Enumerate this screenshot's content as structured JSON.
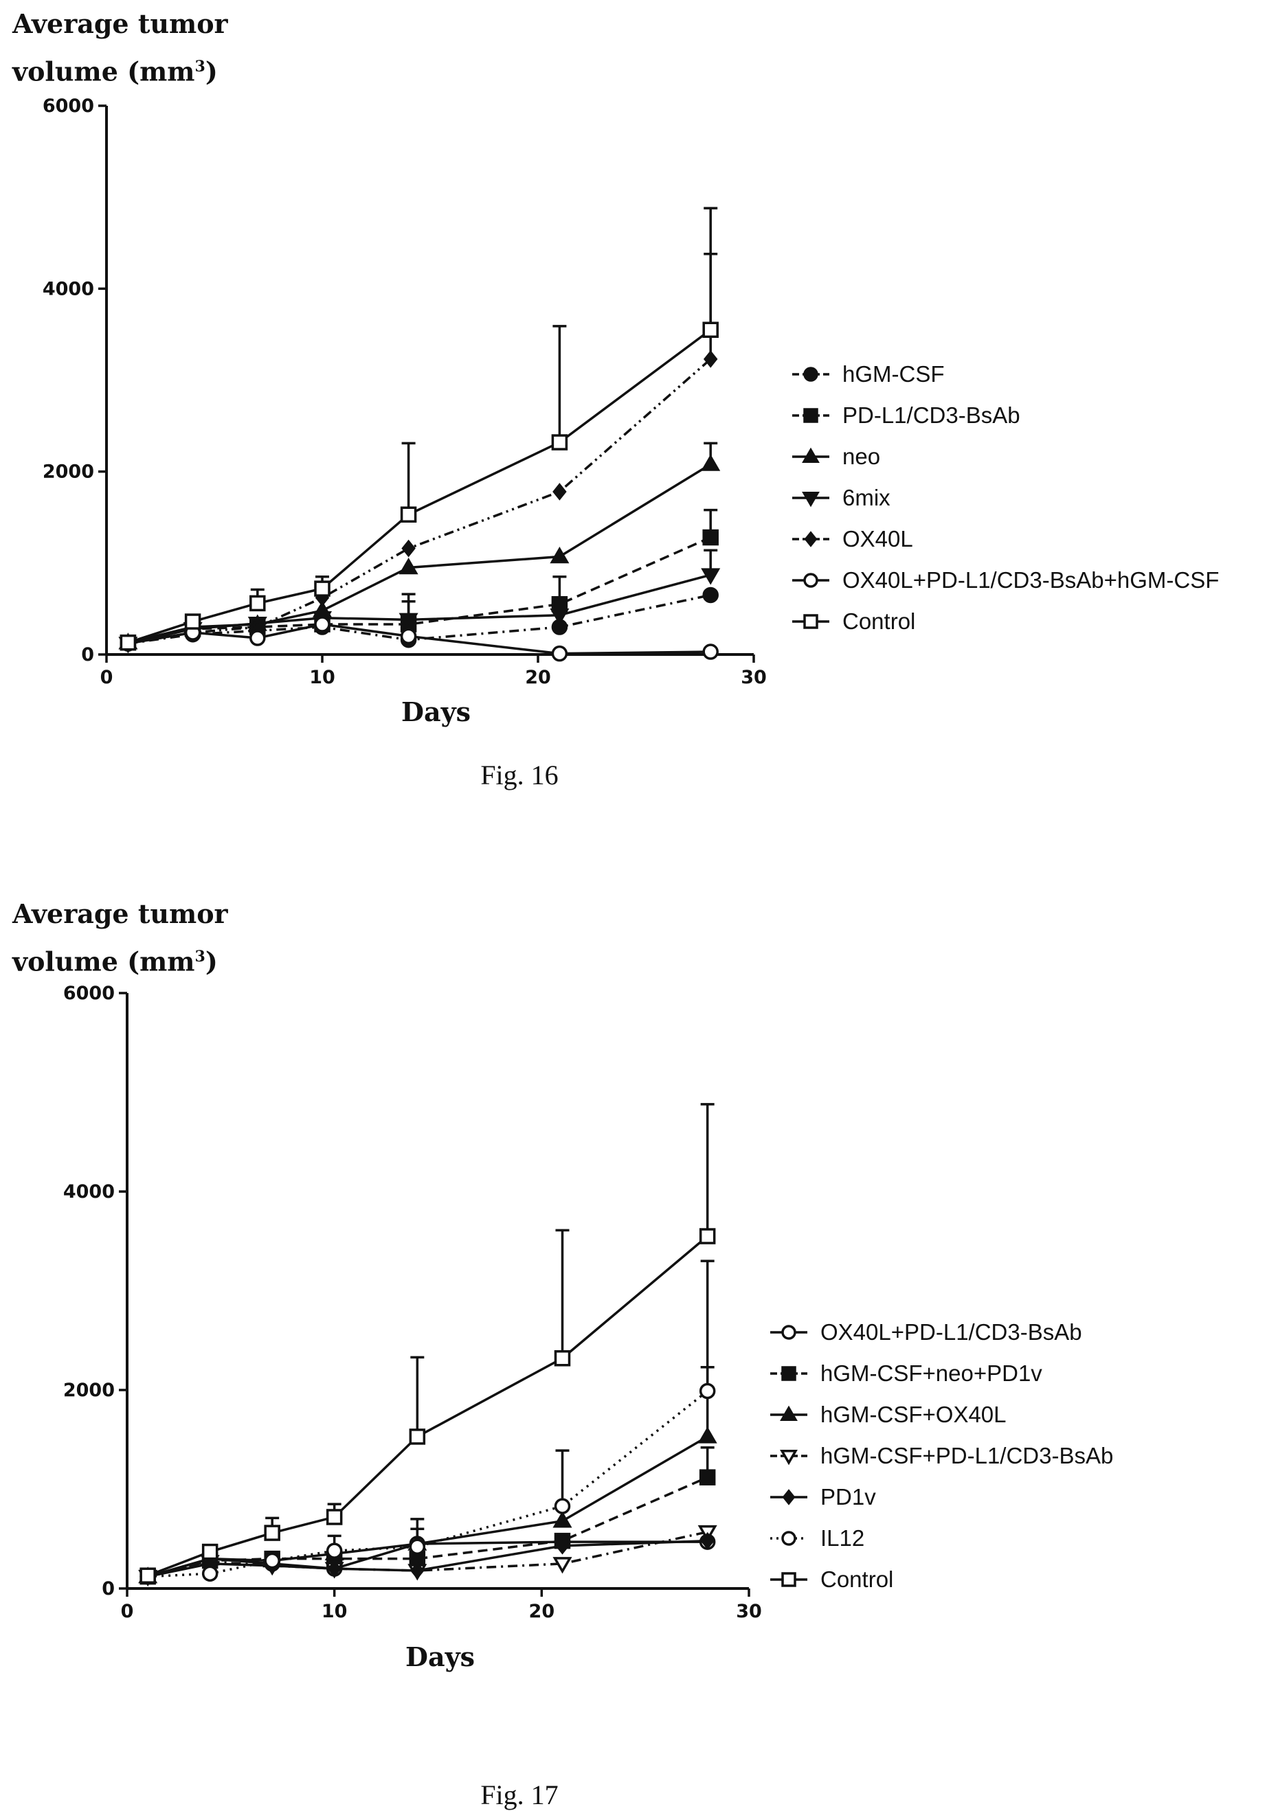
{
  "chart_data": [
    {
      "type": "line",
      "title": "",
      "caption": "Fig. 16",
      "ylabel_line1": "Average tumor",
      "ylabel_line2": "volume (mm",
      "ylabel_sup": "3",
      "ylabel_close": ")",
      "xlabel": "Days",
      "xlim": [
        0,
        30
      ],
      "ylim": [
        0,
        6000
      ],
      "xticks": [
        0,
        10,
        20,
        30
      ],
      "yticks": [
        0,
        2000,
        4000,
        6000
      ],
      "legend_position": "right",
      "x": [
        1,
        4,
        7,
        10,
        14,
        21,
        28
      ],
      "series": [
        {
          "name": "hGM-CSF",
          "marker": "circle-filled",
          "dash": "dashdot",
          "values": [
            120,
            220,
            260,
            300,
            160,
            300,
            650
          ]
        },
        {
          "name": "PD-L1/CD3-BsAb",
          "marker": "square-filled",
          "dash": "dashed",
          "values": [
            130,
            280,
            300,
            330,
            330,
            550,
            1280
          ],
          "err": [
            null,
            null,
            null,
            null,
            250,
            300,
            300
          ]
        },
        {
          "name": "neo",
          "marker": "triangle-up-filled",
          "dash": "solid",
          "values": [
            130,
            300,
            330,
            480,
            950,
            1070,
            2080
          ],
          "err": [
            null,
            null,
            null,
            null,
            null,
            null,
            230
          ]
        },
        {
          "name": "6mix",
          "marker": "triangle-down-filled",
          "dash": "solid",
          "values": [
            120,
            280,
            340,
            400,
            380,
            430,
            870
          ],
          "err": [
            null,
            null,
            null,
            null,
            280,
            null,
            270
          ]
        },
        {
          "name": "OX40L",
          "marker": "diamond-filled",
          "dash": "dashdotdot",
          "values": [
            120,
            240,
            300,
            620,
            1160,
            1780,
            3230
          ],
          "err": [
            null,
            null,
            null,
            null,
            null,
            null,
            1150
          ]
        },
        {
          "name": "OX40L+PD-L1/CD3-BsAb+hGM-CSF",
          "marker": "circle-open",
          "dash": "solid",
          "values": [
            120,
            240,
            180,
            330,
            200,
            10,
            30
          ]
        },
        {
          "name": "Control",
          "marker": "square-open",
          "dash": "solid",
          "values": [
            130,
            360,
            560,
            720,
            1530,
            2320,
            3550
          ],
          "err": [
            null,
            null,
            150,
            130,
            780,
            1270,
            1330
          ]
        }
      ]
    },
    {
      "type": "line",
      "title": "",
      "caption": "Fig. 17",
      "ylabel_line1": "Average tumor",
      "ylabel_line2": "volume (mm",
      "ylabel_sup": "3",
      "ylabel_close": ")",
      "xlabel": "Days",
      "xlim": [
        0,
        30
      ],
      "ylim": [
        0,
        6000
      ],
      "xticks": [
        0,
        10,
        20,
        30
      ],
      "yticks": [
        0,
        2000,
        4000,
        6000
      ],
      "legend_position": "right",
      "x": [
        1,
        4,
        7,
        10,
        14,
        21,
        28
      ],
      "series": [
        {
          "name": "OX40L+PD-L1/CD3-BsAb",
          "marker": "circle-open",
          "dash": "solid",
          "values": [
            120,
            300,
            250,
            200,
            450,
            470,
            470
          ]
        },
        {
          "name": "hGM-CSF+neo+PD1v",
          "marker": "square-filled",
          "dash": "dashed",
          "values": [
            120,
            280,
            300,
            300,
            300,
            480,
            1120
          ],
          "err": [
            null,
            null,
            null,
            null,
            300,
            null,
            300
          ]
        },
        {
          "name": "hGM-CSF+OX40L",
          "marker": "triangle-up-filled",
          "dash": "solid",
          "values": [
            120,
            300,
            280,
            350,
            450,
            680,
            1530
          ],
          "err": [
            null,
            null,
            null,
            null,
            250,
            null,
            700
          ]
        },
        {
          "name": "hGM-CSF+PD-L1/CD3-BsAb",
          "marker": "triangle-down-open",
          "dash": "dashdot",
          "values": [
            120,
            270,
            230,
            200,
            180,
            250,
            570
          ]
        },
        {
          "name": "PD1v",
          "marker": "diamond-filled",
          "dash": "solid",
          "values": [
            120,
            250,
            230,
            200,
            180,
            430,
            480
          ]
        },
        {
          "name": "IL12",
          "marker": "circle-open",
          "dash": "dotted",
          "values": [
            120,
            150,
            280,
            380,
            420,
            830,
            1990
          ],
          "err": [
            null,
            null,
            null,
            150,
            null,
            560,
            1310
          ]
        },
        {
          "name": "Control",
          "marker": "square-open",
          "dash": "solid",
          "values": [
            130,
            370,
            560,
            720,
            1530,
            2320,
            3550
          ],
          "err": [
            null,
            null,
            150,
            130,
            800,
            1290,
            1330
          ]
        }
      ]
    }
  ]
}
